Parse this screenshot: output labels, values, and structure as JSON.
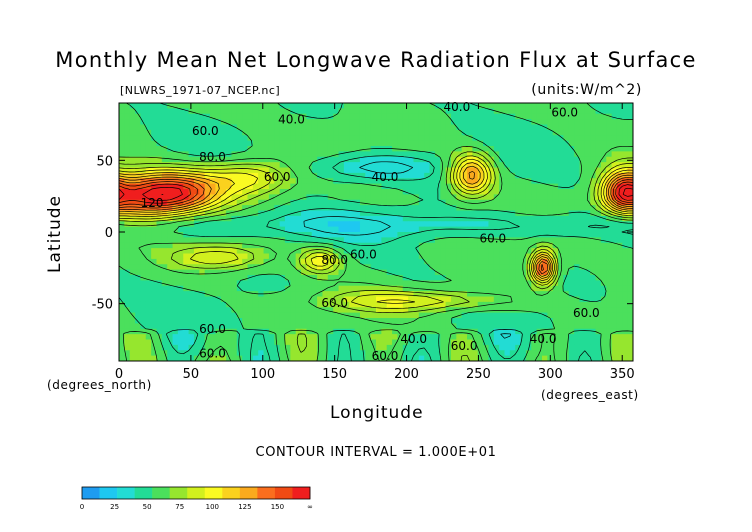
{
  "header": {
    "title": "Monthly Mean Net Longwave Radiation Flux at Surface",
    "file": "[NLWRS_1971-07_NCEP.nc]",
    "units": "(units:W/m^2)"
  },
  "axes": {
    "xlabel": "Longitude",
    "ylabel": "Latitude",
    "x_unit_label": "(degrees_east)",
    "y_unit_label": "(degrees_north)"
  },
  "footer": {
    "contour_interval": "CONTOUR INTERVAL = 1.000E+01"
  },
  "chart_data": {
    "type": "heatmap",
    "title": "Monthly Mean Net Longwave Radiation Flux at Surface",
    "xlabel": "Longitude",
    "ylabel": "Latitude",
    "xlim": [
      0,
      357.5
    ],
    "ylim": [
      -90,
      90
    ],
    "x_ticks": [
      0,
      50,
      100,
      150,
      200,
      250,
      300,
      350
    ],
    "y_ticks": [
      50,
      0,
      -50
    ],
    "contour_interval": 10,
    "contour_labels": [
      {
        "text": "40.0",
        "lon": 120,
        "lat": 78
      },
      {
        "text": "40.0",
        "lon": 235,
        "lat": 87
      },
      {
        "text": "60.0",
        "lon": 60,
        "lat": 70
      },
      {
        "text": "60.0",
        "lon": 310,
        "lat": 83
      },
      {
        "text": "80.0",
        "lon": 65,
        "lat": 52
      },
      {
        "text": "60.0",
        "lon": 110,
        "lat": 38
      },
      {
        "text": "40.0",
        "lon": 185,
        "lat": 38
      },
      {
        "text": "120",
        "lon": 23,
        "lat": 20
      },
      {
        "text": "60.0",
        "lon": 260,
        "lat": -5
      },
      {
        "text": "80.0",
        "lon": 150,
        "lat": -20
      },
      {
        "text": "60.0",
        "lon": 170,
        "lat": -16
      },
      {
        "text": "60.0",
        "lon": 150,
        "lat": -50
      },
      {
        "text": "60.0",
        "lon": 325,
        "lat": -57
      },
      {
        "text": "60.0",
        "lon": 65,
        "lat": -68
      },
      {
        "text": "40.0",
        "lon": 205,
        "lat": -75
      },
      {
        "text": "60.0",
        "lon": 240,
        "lat": -80
      },
      {
        "text": "40.0",
        "lon": 295,
        "lat": -75
      },
      {
        "text": "60.0",
        "lon": 65,
        "lat": -85
      },
      {
        "text": "60.0",
        "lon": 185,
        "lat": -87
      }
    ],
    "colorbar": {
      "ticks": [
        "0",
        "25",
        "50",
        "75",
        "100",
        "125",
        "150",
        "∞"
      ],
      "colors": [
        "#1e9cf0",
        "#1ec8f0",
        "#22dcd4",
        "#22dc96",
        "#4be05c",
        "#96e62e",
        "#d2f01e",
        "#fafa22",
        "#fad21e",
        "#faaa1e",
        "#fa6e1e",
        "#f04a14",
        "#f01e1e"
      ]
    }
  }
}
